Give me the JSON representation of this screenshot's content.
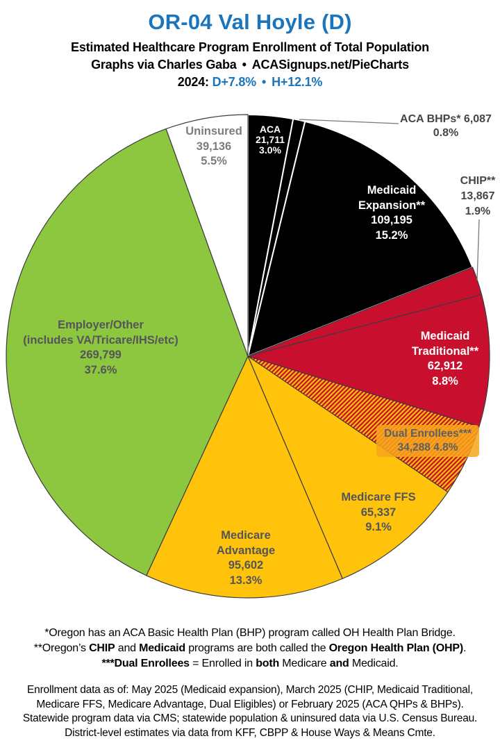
{
  "header": {
    "title": "OR-04 Val Hoyle (D)",
    "subtitle": "Estimated Healthcare Program Enrollment of Total Population",
    "credit": "Graphs via Charles Gaba",
    "separator": "•",
    "site": "ACASignups.net/PieCharts",
    "year_label": "2024:",
    "metric1": "D+7.8%",
    "metric2": "H+12.1%"
  },
  "colors": {
    "accent_blue": "#1B75BC",
    "black_slice": "#000000",
    "red_slice": "#C8102E",
    "amber_slice": "#FFC30B",
    "green_slice": "#8DC63F",
    "white_slice": "#FFFFFF",
    "dual_label_bg": "#F7A41D"
  },
  "chart_data": {
    "type": "pie",
    "title": "Estimated Healthcare Program Enrollment of Total Population",
    "start_angle_deg": 0,
    "direction": "clockwise",
    "legend": "labels on/around slices",
    "slices": [
      {
        "name": "ACA",
        "value": 21711,
        "pct": 3.0,
        "fill": "#000000",
        "stroke": "#FFFFFF",
        "label_lines": [
          "ACA",
          "21,711",
          "3.0%"
        ]
      },
      {
        "name": "ACA BHPs",
        "value": 6087,
        "pct": 0.8,
        "fill": "#000000",
        "stroke": "#FFFFFF",
        "label_lines": [
          "ACA BHPs* 6,087",
          "0.8%"
        ]
      },
      {
        "name": "Medicaid Expansion",
        "value": 109195,
        "pct": 15.2,
        "fill": "#000000",
        "stroke": "#FFFFFF",
        "label_lines": [
          "Medicaid",
          "Expansion**",
          "109,195",
          "15.2%"
        ]
      },
      {
        "name": "CHIP",
        "value": 13867,
        "pct": 1.9,
        "fill": "#C8102E",
        "stroke": "#3C3C3E",
        "label_lines": [
          "CHIP**",
          "13,867",
          "1.9%"
        ]
      },
      {
        "name": "Medicaid Traditional",
        "value": 62912,
        "pct": 8.8,
        "fill": "#C8102E",
        "stroke": "#3C3C3E",
        "label_lines": [
          "Medicaid",
          "Traditional**",
          "62,912",
          "8.8%"
        ]
      },
      {
        "name": "Dual Enrollees",
        "value": 34288,
        "pct": 4.8,
        "fill": "hatch",
        "stroke": "#3C3C3E",
        "label_lines": [
          "Dual Enrollees***",
          "34,288 4.8%"
        ]
      },
      {
        "name": "Medicare FFS",
        "value": 65337,
        "pct": 9.1,
        "fill": "#FFC30B",
        "stroke": "#3C3C3E",
        "label_lines": [
          "Medicare FFS",
          "65,337",
          "9.1%"
        ]
      },
      {
        "name": "Medicare Advantage",
        "value": 95602,
        "pct": 13.3,
        "fill": "#FFC30B",
        "stroke": "#3C3C3E",
        "label_lines": [
          "Medicare",
          "Advantage",
          "95,602",
          "13.3%"
        ]
      },
      {
        "name": "Employer/Other",
        "value": 269799,
        "pct": 37.6,
        "fill": "#8DC63F",
        "stroke": "#3C3C3E",
        "label_lines": [
          "Employer/Other",
          "(includes VA/Tricare/IHS/etc)",
          "269,799",
          "37.6%"
        ]
      },
      {
        "name": "Uninsured",
        "value": 39136,
        "pct": 5.5,
        "fill": "#FFFFFF",
        "stroke": "#3C3C3E",
        "label_lines": [
          "Uninsured",
          "39,136",
          "5.5%"
        ]
      }
    ]
  },
  "footnotes": [
    {
      "segments": [
        {
          "text": "*Oregon has an ACA Basic Health Plan (BHP) program called OH Health Plan Bridge.",
          "bold": false
        }
      ]
    },
    {
      "segments": [
        {
          "text": "**Oregon’s ",
          "bold": false
        },
        {
          "text": "CHIP",
          "bold": true
        },
        {
          "text": " and ",
          "bold": false
        },
        {
          "text": "Medicaid",
          "bold": true
        },
        {
          "text": " programs are both called the ",
          "bold": false
        },
        {
          "text": "Oregon Health Plan (OHP)",
          "bold": true
        },
        {
          "text": ".",
          "bold": false
        }
      ]
    },
    {
      "segments": [
        {
          "text": "***Dual Enrollees",
          "bold": true
        },
        {
          "text": " = Enrolled in ",
          "bold": false
        },
        {
          "text": "both",
          "bold": true
        },
        {
          "text": " Medicare ",
          "bold": false
        },
        {
          "text": "and",
          "bold": true
        },
        {
          "text": " Medicaid.",
          "bold": false
        }
      ]
    }
  ],
  "sources": [
    "Enrollment data as of: May 2025 (Medicaid expansion), March 2025 (CHIP, Medicaid Traditional,",
    "Medicare FFS, Medicare Advantage, Dual Eligibles) or February 2025 (ACA QHPs & BHPs).",
    "Statewide program data via CMS; statewide population & uninsured data via U.S. Census Bureau.",
    "District-level estimates via data from KFF, CBPP & House Ways & Means Cmte."
  ]
}
